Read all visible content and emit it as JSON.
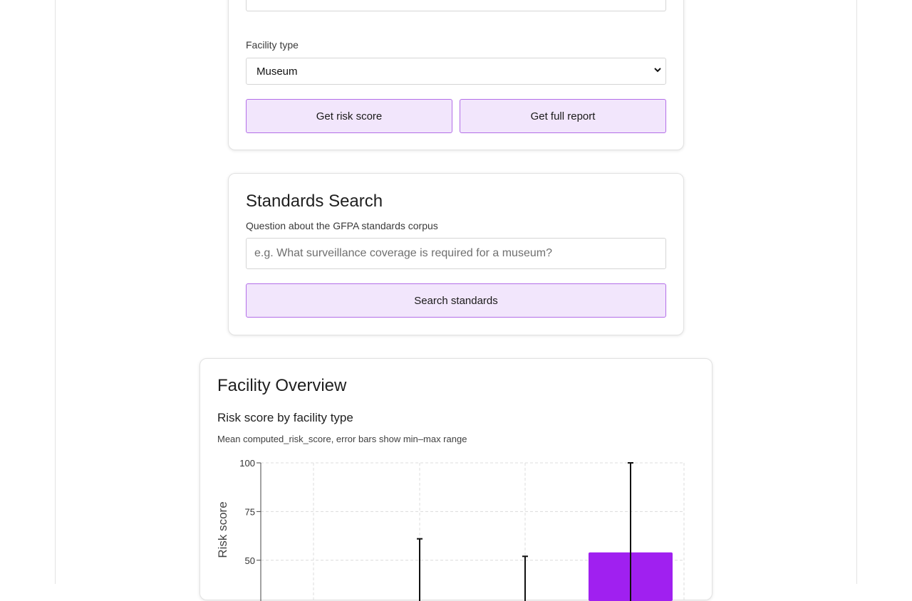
{
  "risk_form": {
    "facility_type_label": "Facility type",
    "facility_type_value": "Museum",
    "get_risk_score_label": "Get risk score",
    "get_full_report_label": "Get full report"
  },
  "standards_search": {
    "title": "Standards Search",
    "question_label": "Question about the GFPA standards corpus",
    "question_placeholder": "e.g. What surveillance coverage is required for a museum?",
    "search_button_label": "Search standards"
  },
  "overview": {
    "title": "Facility Overview"
  },
  "chart_data": {
    "type": "bar",
    "title": "Risk score by facility type",
    "subtitle": "Mean computed_risk_score, error bars show min–max range",
    "ylabel": "Risk score",
    "ylim": [
      0,
      100
    ],
    "yticks": [
      50,
      75,
      100
    ],
    "grid": true,
    "bar_color": "#a020f0",
    "error_bar_max": [
      61,
      52,
      100
    ],
    "visible_bar_top": 54
  }
}
